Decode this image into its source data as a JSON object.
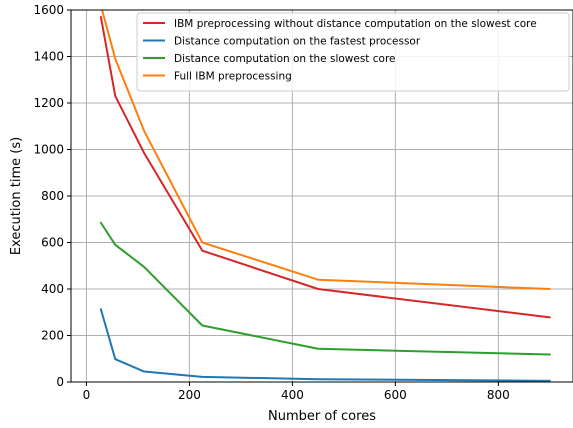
{
  "chart_data": {
    "type": "line",
    "title": "",
    "xlabel": "Number of cores",
    "ylabel": "Execution time (s)",
    "xlim": [
      -30,
      945
    ],
    "ylim": [
      0,
      1600
    ],
    "xticks": [
      0,
      200,
      400,
      600,
      800
    ],
    "yticks": [
      0,
      200,
      400,
      600,
      800,
      1000,
      1200,
      1400,
      1600
    ],
    "grid": true,
    "legend_position": "top-right",
    "series": [
      {
        "name": "IBM preprocessing without distance computation on the slowest core",
        "color": "#d62728",
        "x": [
          28,
          56,
          112,
          225,
          450,
          900
        ],
        "y": [
          1570,
          1230,
          985,
          565,
          400,
          278
        ]
      },
      {
        "name": "Distance computation on the fastest processor",
        "color": "#1f77b4",
        "x": [
          28,
          56,
          112,
          225,
          450,
          900
        ],
        "y": [
          313,
          98,
          45,
          22,
          12,
          5
        ]
      },
      {
        "name": "Distance computation on the slowest core",
        "color": "#2ca02c",
        "x": [
          28,
          56,
          112,
          225,
          450,
          900
        ],
        "y": [
          685,
          590,
          495,
          243,
          143,
          118
        ]
      },
      {
        "name": "Full IBM preprocessing",
        "color": "#ff7f0e",
        "x": [
          28,
          56,
          112,
          225,
          450,
          900
        ],
        "y": [
          1620,
          1390,
          1080,
          600,
          440,
          400
        ]
      }
    ]
  }
}
